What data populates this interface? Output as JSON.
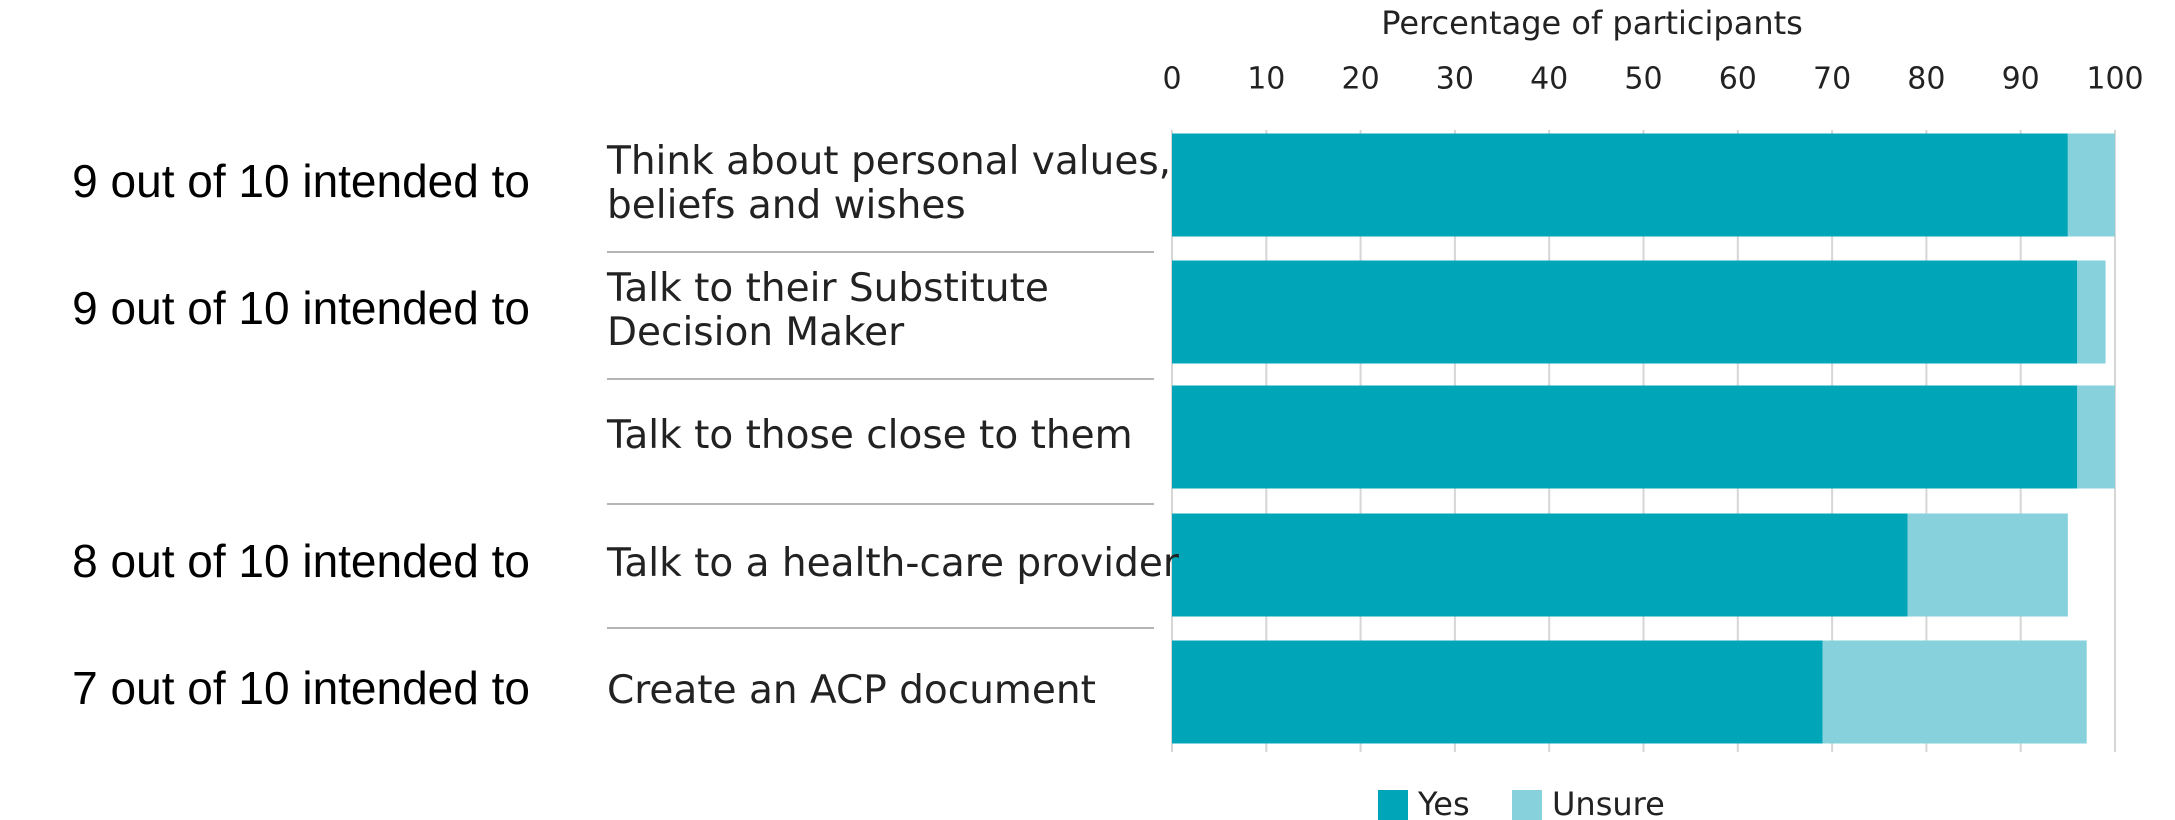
{
  "chart_data": {
    "type": "stacked-barh",
    "x_label": "Percentage of participants",
    "categories": [
      "Think about personal values,\nbeliefs and wishes",
      "Talk to their Substitute\nDecision Maker",
      "Talk to those close to them",
      "Talk to a health-care provider",
      "Create an ACP document"
    ],
    "annotations": [
      "9 out of 10 intended to",
      "9 out of 10 intended to",
      null,
      "8 out of 10 intended to",
      "7 out of 10 intended to"
    ],
    "series": [
      {
        "name": "Yes",
        "color": "#00a6b8",
        "values": [
          95,
          96,
          96,
          78,
          69
        ]
      },
      {
        "name": "Unsure",
        "color": "#86d1db",
        "values": [
          5,
          3,
          4,
          17,
          28
        ]
      }
    ],
    "xlim": [
      0,
      100
    ],
    "xticks": [
      0,
      10,
      20,
      30,
      40,
      50,
      60,
      70,
      80,
      90,
      100
    ],
    "grid": true,
    "legend": "bottom"
  }
}
